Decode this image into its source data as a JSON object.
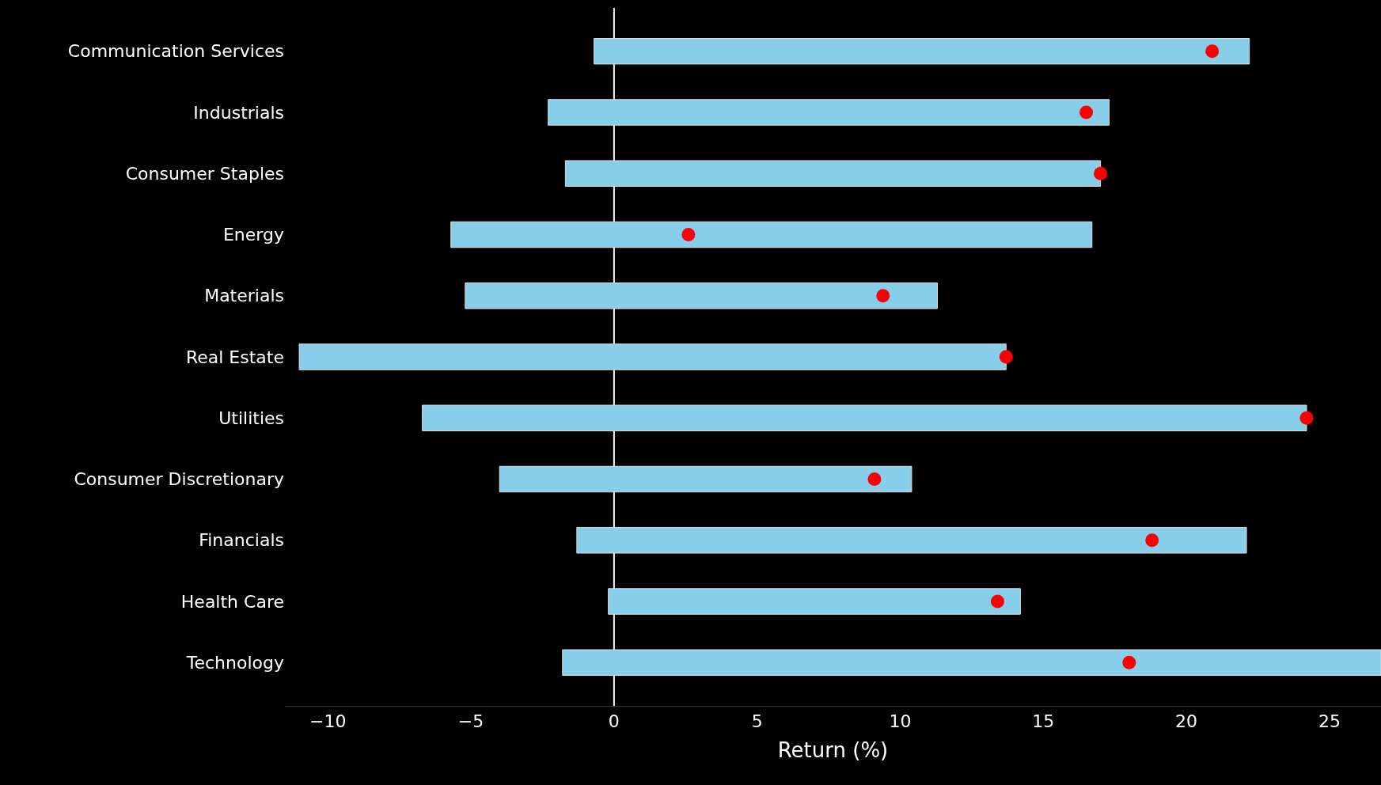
{
  "chart_data": {
    "type": "bar",
    "orientation": "horizontal",
    "xlabel": "Return (%)",
    "categories": [
      "Communication Services",
      "Industrials",
      "Consumer Staples",
      "Energy",
      "Materials",
      "Real Estate",
      "Utilities",
      "Consumer Discretionary",
      "Financials",
      "Health Care",
      "Technology"
    ],
    "series": [
      {
        "color": "#87ceeb",
        "base": [
          -0.7,
          -2.3,
          -1.7,
          -5.7,
          -5.2,
          -11.0,
          -6.7,
          -4.0,
          -1.3,
          -0.2,
          -1.8
        ],
        "values": [
          22.9,
          19.6,
          18.7,
          22.4,
          16.5,
          24.7,
          30.9,
          14.4,
          23.4,
          14.4,
          28.6
        ]
      },
      {
        "type": "scatter",
        "color": "#ff0000",
        "marker": "circle",
        "values": [
          20.9,
          16.5,
          17.0,
          2.6,
          9.4,
          13.7,
          24.2,
          9.1,
          18.8,
          13.4,
          18.0
        ]
      }
    ],
    "xlim": [
      -11.5,
      26.8
    ],
    "xticks": [
      {
        "value": -10,
        "label": "−10"
      },
      {
        "value": -5,
        "label": "−5"
      },
      0,
      5,
      10,
      15,
      20,
      25
    ],
    "ref_lines": [
      {
        "axis": "x",
        "value": 0,
        "color": "#ffffff"
      }
    ]
  }
}
